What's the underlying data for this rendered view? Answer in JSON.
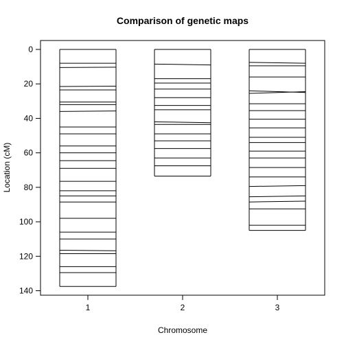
{
  "chart_data": {
    "type": "genetic-map",
    "title": "Comparison of genetic maps",
    "xlabel": "Chromosome",
    "ylabel": "Location (cM)",
    "ylim": [
      0,
      142
    ],
    "y_reversed": true,
    "yticks": [
      0,
      20,
      40,
      60,
      80,
      100,
      120,
      140
    ],
    "grid": false,
    "chromosomes": [
      {
        "label": "1",
        "length": 137.5,
        "markers": [
          0,
          8,
          10.5,
          21.5,
          23.5,
          30.5,
          32,
          36,
          45,
          49,
          56,
          60,
          64.5,
          69,
          76.5,
          82,
          85,
          88.5,
          98,
          106,
          110,
          116.5,
          118.5,
          126,
          129.5,
          137.5
        ],
        "marker_pairs": [
          [
            0,
            0
          ],
          [
            8,
            8
          ],
          [
            10.5,
            10.3
          ],
          [
            21.5,
            21.3
          ],
          [
            23.5,
            23.5
          ],
          [
            30.5,
            30.5
          ],
          [
            32,
            32
          ],
          [
            36,
            35.7
          ],
          [
            45,
            45
          ],
          [
            49,
            49
          ],
          [
            56,
            56
          ],
          [
            60,
            60
          ],
          [
            64.5,
            64.5
          ],
          [
            69,
            69
          ],
          [
            76.5,
            76.5
          ],
          [
            82,
            82
          ],
          [
            85,
            85
          ],
          [
            88.5,
            88.5
          ],
          [
            98,
            98
          ],
          [
            106,
            106
          ],
          [
            110,
            110
          ],
          [
            116.5,
            116.8
          ],
          [
            118.5,
            118.5
          ],
          [
            126,
            126
          ],
          [
            129.5,
            129.5
          ],
          [
            137.5,
            137.5
          ]
        ]
      },
      {
        "label": "2",
        "length": 73.5,
        "markers": [
          0,
          8.5,
          17,
          19.5,
          23,
          28,
          32.5,
          35,
          42,
          43.5,
          49,
          53,
          57.5,
          63,
          67.5,
          73.5
        ],
        "marker_pairs": [
          [
            0,
            0
          ],
          [
            8.5,
            9
          ],
          [
            17,
            17
          ],
          [
            19.5,
            19.5
          ],
          [
            23,
            23
          ],
          [
            28,
            28
          ],
          [
            32.5,
            32.5
          ],
          [
            35,
            35
          ],
          [
            42,
            42.5
          ],
          [
            43.5,
            43.5
          ],
          [
            49,
            49
          ],
          [
            53,
            53
          ],
          [
            57.5,
            57.5
          ],
          [
            63,
            63
          ],
          [
            67.5,
            67.5
          ],
          [
            73.5,
            73.5
          ]
        ]
      },
      {
        "label": "3",
        "length": 105,
        "markers": [
          0,
          8,
          9.5,
          16,
          24.5,
          25,
          31.5,
          35.5,
          40.5,
          45.5,
          51,
          54,
          59,
          63,
          68.5,
          74,
          79,
          85.5,
          88.5,
          92.5,
          102,
          105
        ],
        "marker_pairs": [
          [
            0,
            0
          ],
          [
            7.5,
            8
          ],
          [
            9.5,
            9.5
          ],
          [
            16,
            16
          ],
          [
            24,
            25
          ],
          [
            25.5,
            24.5
          ],
          [
            31.5,
            31.5
          ],
          [
            35.5,
            35.5
          ],
          [
            40.5,
            40.5
          ],
          [
            45.5,
            45.5
          ],
          [
            51,
            51
          ],
          [
            54,
            54
          ],
          [
            59,
            59
          ],
          [
            63,
            63
          ],
          [
            68.5,
            68.5
          ],
          [
            74,
            74
          ],
          [
            79.5,
            79
          ],
          [
            85.5,
            85
          ],
          [
            88.5,
            88
          ],
          [
            92.5,
            92.5
          ],
          [
            102,
            102
          ],
          [
            105,
            105
          ]
        ]
      }
    ]
  }
}
